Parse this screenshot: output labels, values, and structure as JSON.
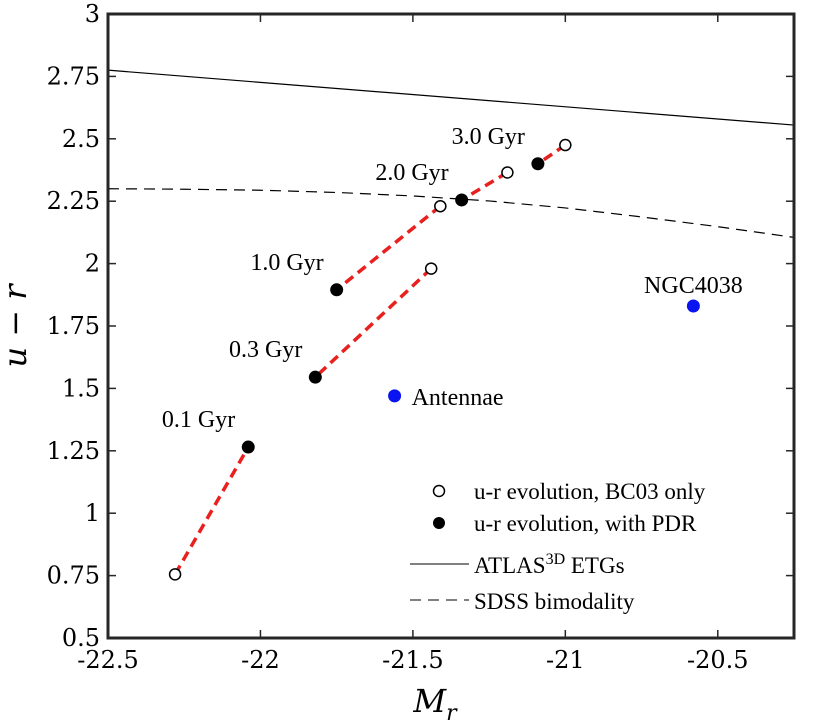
{
  "chart_data": {
    "type": "scatter",
    "xlabel": "M",
    "xlabel_sub": "r",
    "ylabel": "u − r",
    "xlim": [
      -22.5,
      -20.25
    ],
    "ylim": [
      0.5,
      3
    ],
    "xticks": [
      -22.5,
      -22,
      -21.5,
      -21,
      -20.5
    ],
    "xtick_labels": [
      "-22.5",
      "-22",
      "-21.5",
      "-21",
      "-20.5"
    ],
    "yticks": [
      0.5,
      0.75,
      1,
      1.25,
      1.5,
      1.75,
      2,
      2.25,
      2.5,
      2.75,
      3
    ],
    "ytick_labels": [
      "0.5",
      "0.75",
      "1",
      "1.25",
      "1.5",
      "1.75",
      "2",
      "2.25",
      "2.5",
      "2.75",
      "3"
    ],
    "lines": [
      {
        "name": "ATLAS3D ETGs",
        "style": "solid",
        "color": "#000000",
        "x": [
          -22.5,
          -20.25
        ],
        "y": [
          2.775,
          2.555
        ]
      },
      {
        "name": "SDSS bimodality",
        "style": "dashed",
        "color": "#000000",
        "x": [
          -22.5,
          -22.25,
          -22.0,
          -21.75,
          -21.5,
          -21.25,
          -21.0,
          -20.75,
          -20.5,
          -20.25
        ],
        "y": [
          2.3,
          2.298,
          2.294,
          2.285,
          2.271,
          2.251,
          2.223,
          2.187,
          2.148,
          2.105
        ]
      }
    ],
    "evolution_segments": [
      {
        "age": "0.1 Gyr",
        "bc03": {
          "x": -22.28,
          "y": 0.755
        },
        "pdr": {
          "x": -22.04,
          "y": 1.265
        }
      },
      {
        "age": "0.3 Gyr",
        "bc03": {
          "x": -21.44,
          "y": 1.98
        },
        "pdr": {
          "x": -21.82,
          "y": 1.545
        }
      },
      {
        "age": "1.0 Gyr",
        "bc03": {
          "x": -21.41,
          "y": 2.23
        },
        "pdr": {
          "x": -21.75,
          "y": 1.895
        }
      },
      {
        "age": "2.0 Gyr",
        "bc03": {
          "x": -21.19,
          "y": 2.365
        },
        "pdr": {
          "x": -21.34,
          "y": 2.255
        }
      },
      {
        "age": "3.0 Gyr",
        "bc03": {
          "x": -21.0,
          "y": 2.475
        },
        "pdr": {
          "x": -21.09,
          "y": 2.4
        }
      }
    ],
    "segment_color": "#e8201e",
    "galaxies": [
      {
        "name": "Antennae",
        "x": -21.56,
        "y": 1.47,
        "color": "#0a14f0"
      },
      {
        "name": "NGC4038",
        "x": -20.58,
        "y": 1.83,
        "color": "#0a14f0"
      }
    ],
    "legend": {
      "placement": "bottom-right",
      "entries": [
        {
          "label": "u-r evolution, BC03 only",
          "marker": "open-circle"
        },
        {
          "label": "u-r evolution, with PDR",
          "marker": "filled-circle"
        },
        {
          "label_main": "ATLAS",
          "label_sup": "3D",
          "label_tail": " ETGs",
          "marker": "solid-line"
        },
        {
          "label": "SDSS bimodality",
          "marker": "dashed-line"
        }
      ]
    }
  }
}
